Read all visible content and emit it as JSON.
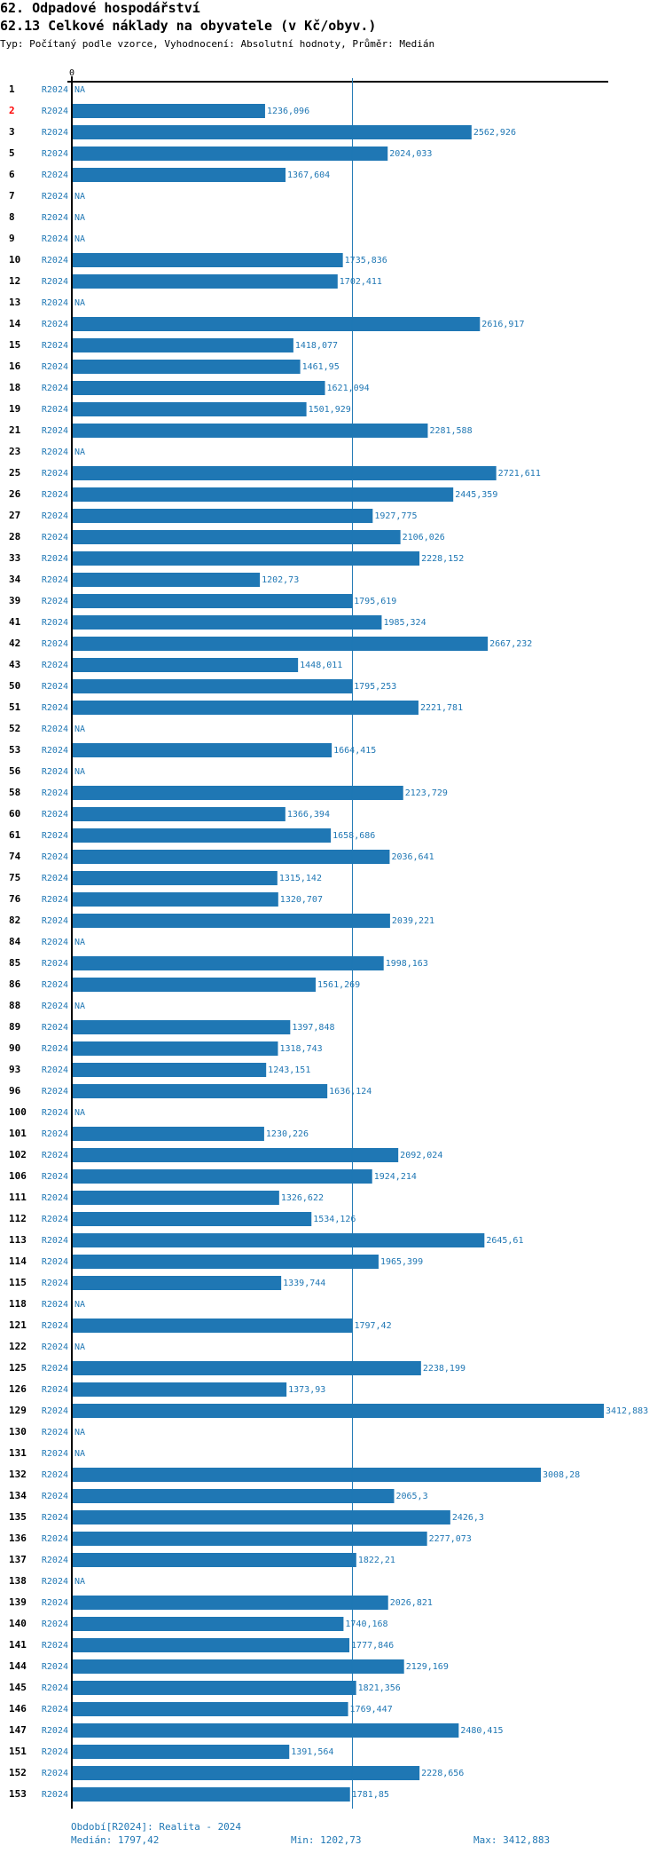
{
  "header": {
    "section": "62. Odpadové hospodářství",
    "indicator": "62.13 Celkové náklady na obyvatele (v Kč/obyv.)",
    "meta": "Typ: Počítaný podle vzorce, Vyhodnocení: Absolutní hodnoty, Průměr: Medián"
  },
  "colors": {
    "bar": "#1f77b4",
    "text_value": "#1f77b4",
    "label": "#000000",
    "highlight_label": "#ff0000",
    "axis": "#000000"
  },
  "chart_data": {
    "type": "bar",
    "orientation": "horizontal",
    "title": "62.13 Celkové náklady na obyvatele (v Kč/obyv.)",
    "xlabel": "",
    "ylabel": "",
    "x_axis_tick_labels": [
      "0"
    ],
    "xlim": [
      0,
      3412.883
    ],
    "grid": false,
    "legend": "none",
    "period_label": "R2024",
    "na_label": "NA",
    "highlighted_category": "2",
    "reference_line": {
      "name": "Medián",
      "value": 1797.42
    },
    "categories": [
      "1",
      "2",
      "3",
      "5",
      "6",
      "7",
      "8",
      "9",
      "10",
      "12",
      "13",
      "14",
      "15",
      "16",
      "18",
      "19",
      "21",
      "23",
      "25",
      "26",
      "27",
      "28",
      "33",
      "34",
      "39",
      "41",
      "42",
      "43",
      "50",
      "51",
      "52",
      "53",
      "56",
      "58",
      "60",
      "61",
      "74",
      "75",
      "76",
      "82",
      "84",
      "85",
      "86",
      "88",
      "89",
      "90",
      "93",
      "96",
      "100",
      "101",
      "102",
      "106",
      "111",
      "112",
      "113",
      "114",
      "115",
      "118",
      "121",
      "122",
      "125",
      "126",
      "129",
      "130",
      "131",
      "132",
      "134",
      "135",
      "136",
      "137",
      "138",
      "139",
      "140",
      "141",
      "144",
      "145",
      "146",
      "147",
      "151",
      "152",
      "153"
    ],
    "values": [
      null,
      1236.096,
      2562.926,
      2024.033,
      1367.604,
      null,
      null,
      null,
      1735.836,
      1702.411,
      null,
      2616.917,
      1418.077,
      1461.95,
      1621.094,
      1501.929,
      2281.588,
      null,
      2721.611,
      2445.359,
      1927.775,
      2106.026,
      2228.152,
      1202.73,
      1795.619,
      1985.324,
      2667.232,
      1448.011,
      1795.253,
      2221.781,
      null,
      1664.415,
      null,
      2123.729,
      1366.394,
      1658.686,
      2036.641,
      1315.142,
      1320.707,
      2039.221,
      null,
      1998.163,
      1561.269,
      null,
      1397.848,
      1318.743,
      1243.151,
      1636.124,
      null,
      1230.226,
      2092.024,
      1924.214,
      1326.622,
      1534.126,
      2645.61,
      1965.399,
      1339.744,
      null,
      1797.42,
      null,
      2238.199,
      1373.93,
      3412.883,
      null,
      null,
      3008.28,
      2065.3,
      2426.3,
      2277.073,
      1822.21,
      null,
      2026.821,
      1740.168,
      1777.846,
      2129.169,
      1821.356,
      1769.447,
      2480.415,
      1391.564,
      2228.656,
      1781.85
    ],
    "value_labels": [
      "NA",
      "1236,096",
      "2562,926",
      "2024,033",
      "1367,604",
      "NA",
      "NA",
      "NA",
      "1735,836",
      "1702,411",
      "NA",
      "2616,917",
      "1418,077",
      "1461,95",
      "1621,094",
      "1501,929",
      "2281,588",
      "NA",
      "2721,611",
      "2445,359",
      "1927,775",
      "2106,026",
      "2228,152",
      "1202,73",
      "1795,619",
      "1985,324",
      "2667,232",
      "1448,011",
      "1795,253",
      "2221,781",
      "NA",
      "1664,415",
      "NA",
      "2123,729",
      "1366,394",
      "1658,686",
      "2036,641",
      "1315,142",
      "1320,707",
      "2039,221",
      "NA",
      "1998,163",
      "1561,269",
      "NA",
      "1397,848",
      "1318,743",
      "1243,151",
      "1636,124",
      "NA",
      "1230,226",
      "2092,024",
      "1924,214",
      "1326,622",
      "1534,126",
      "2645,61",
      "1965,399",
      "1339,744",
      "NA",
      "1797,42",
      "NA",
      "2238,199",
      "1373,93",
      "3412,883",
      "NA",
      "NA",
      "3008,28",
      "2065,3",
      "2426,3",
      "2277,073",
      "1822,21",
      "NA",
      "2026,821",
      "1740,168",
      "1777,846",
      "2129,169",
      "1821,356",
      "1769,447",
      "2480,415",
      "1391,564",
      "2228,656",
      "1781,85"
    ]
  },
  "footer": {
    "period": "Období[R2024]: Realita - 2024",
    "median": "Medián: 1797,42",
    "min": "Min: 1202,73",
    "max": "Max: 3412,883"
  }
}
